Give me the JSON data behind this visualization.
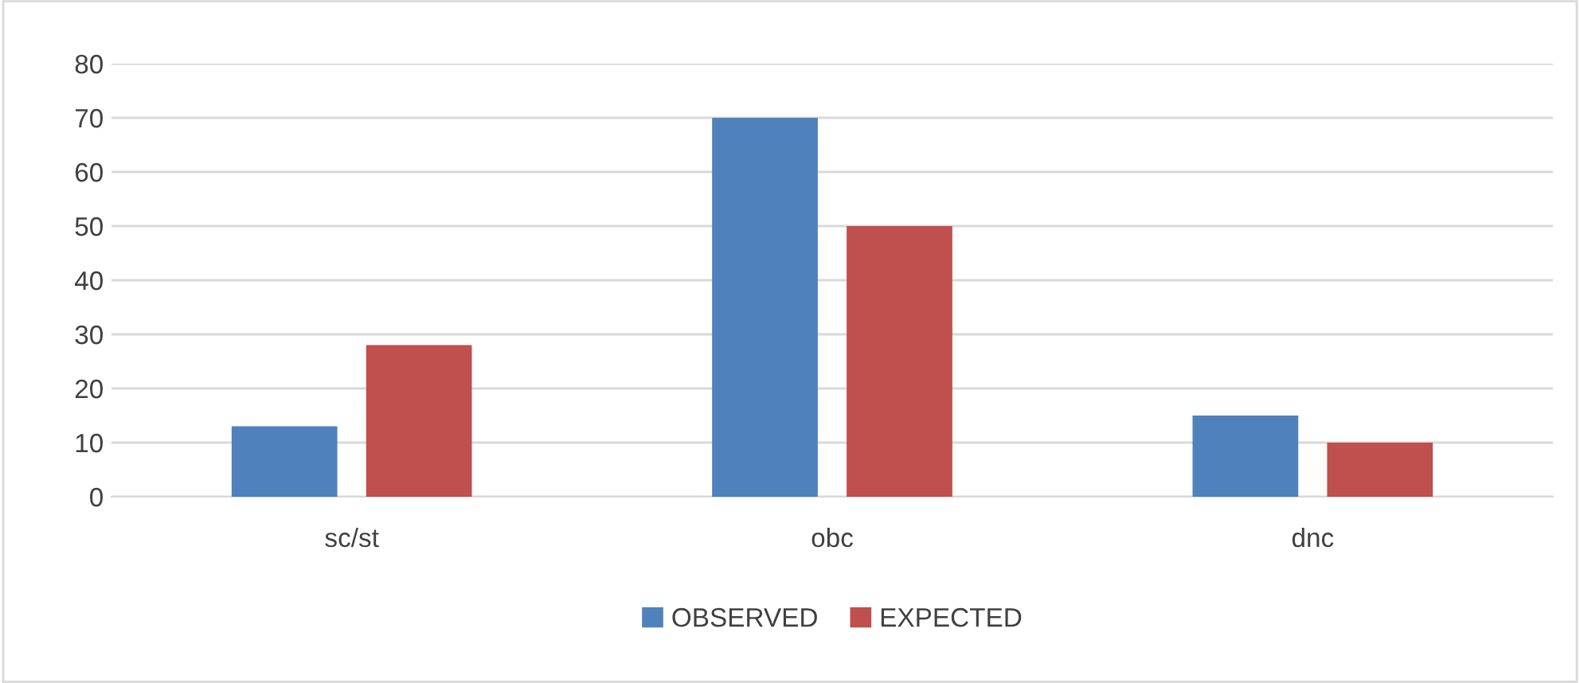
{
  "chart_data": {
    "type": "bar",
    "categories": [
      "sc/st",
      "obc",
      "dnc"
    ],
    "series": [
      {
        "name": "OBSERVED",
        "color": "#4f81bd",
        "values": [
          13,
          70,
          15
        ]
      },
      {
        "name": "EXPECTED",
        "color": "#c0504d",
        "values": [
          28,
          50,
          10
        ]
      }
    ],
    "ylim": [
      0,
      80
    ],
    "yticks": [
      0,
      10,
      20,
      30,
      40,
      50,
      60,
      70,
      80
    ],
    "grid": "y",
    "legend": "bottom"
  }
}
